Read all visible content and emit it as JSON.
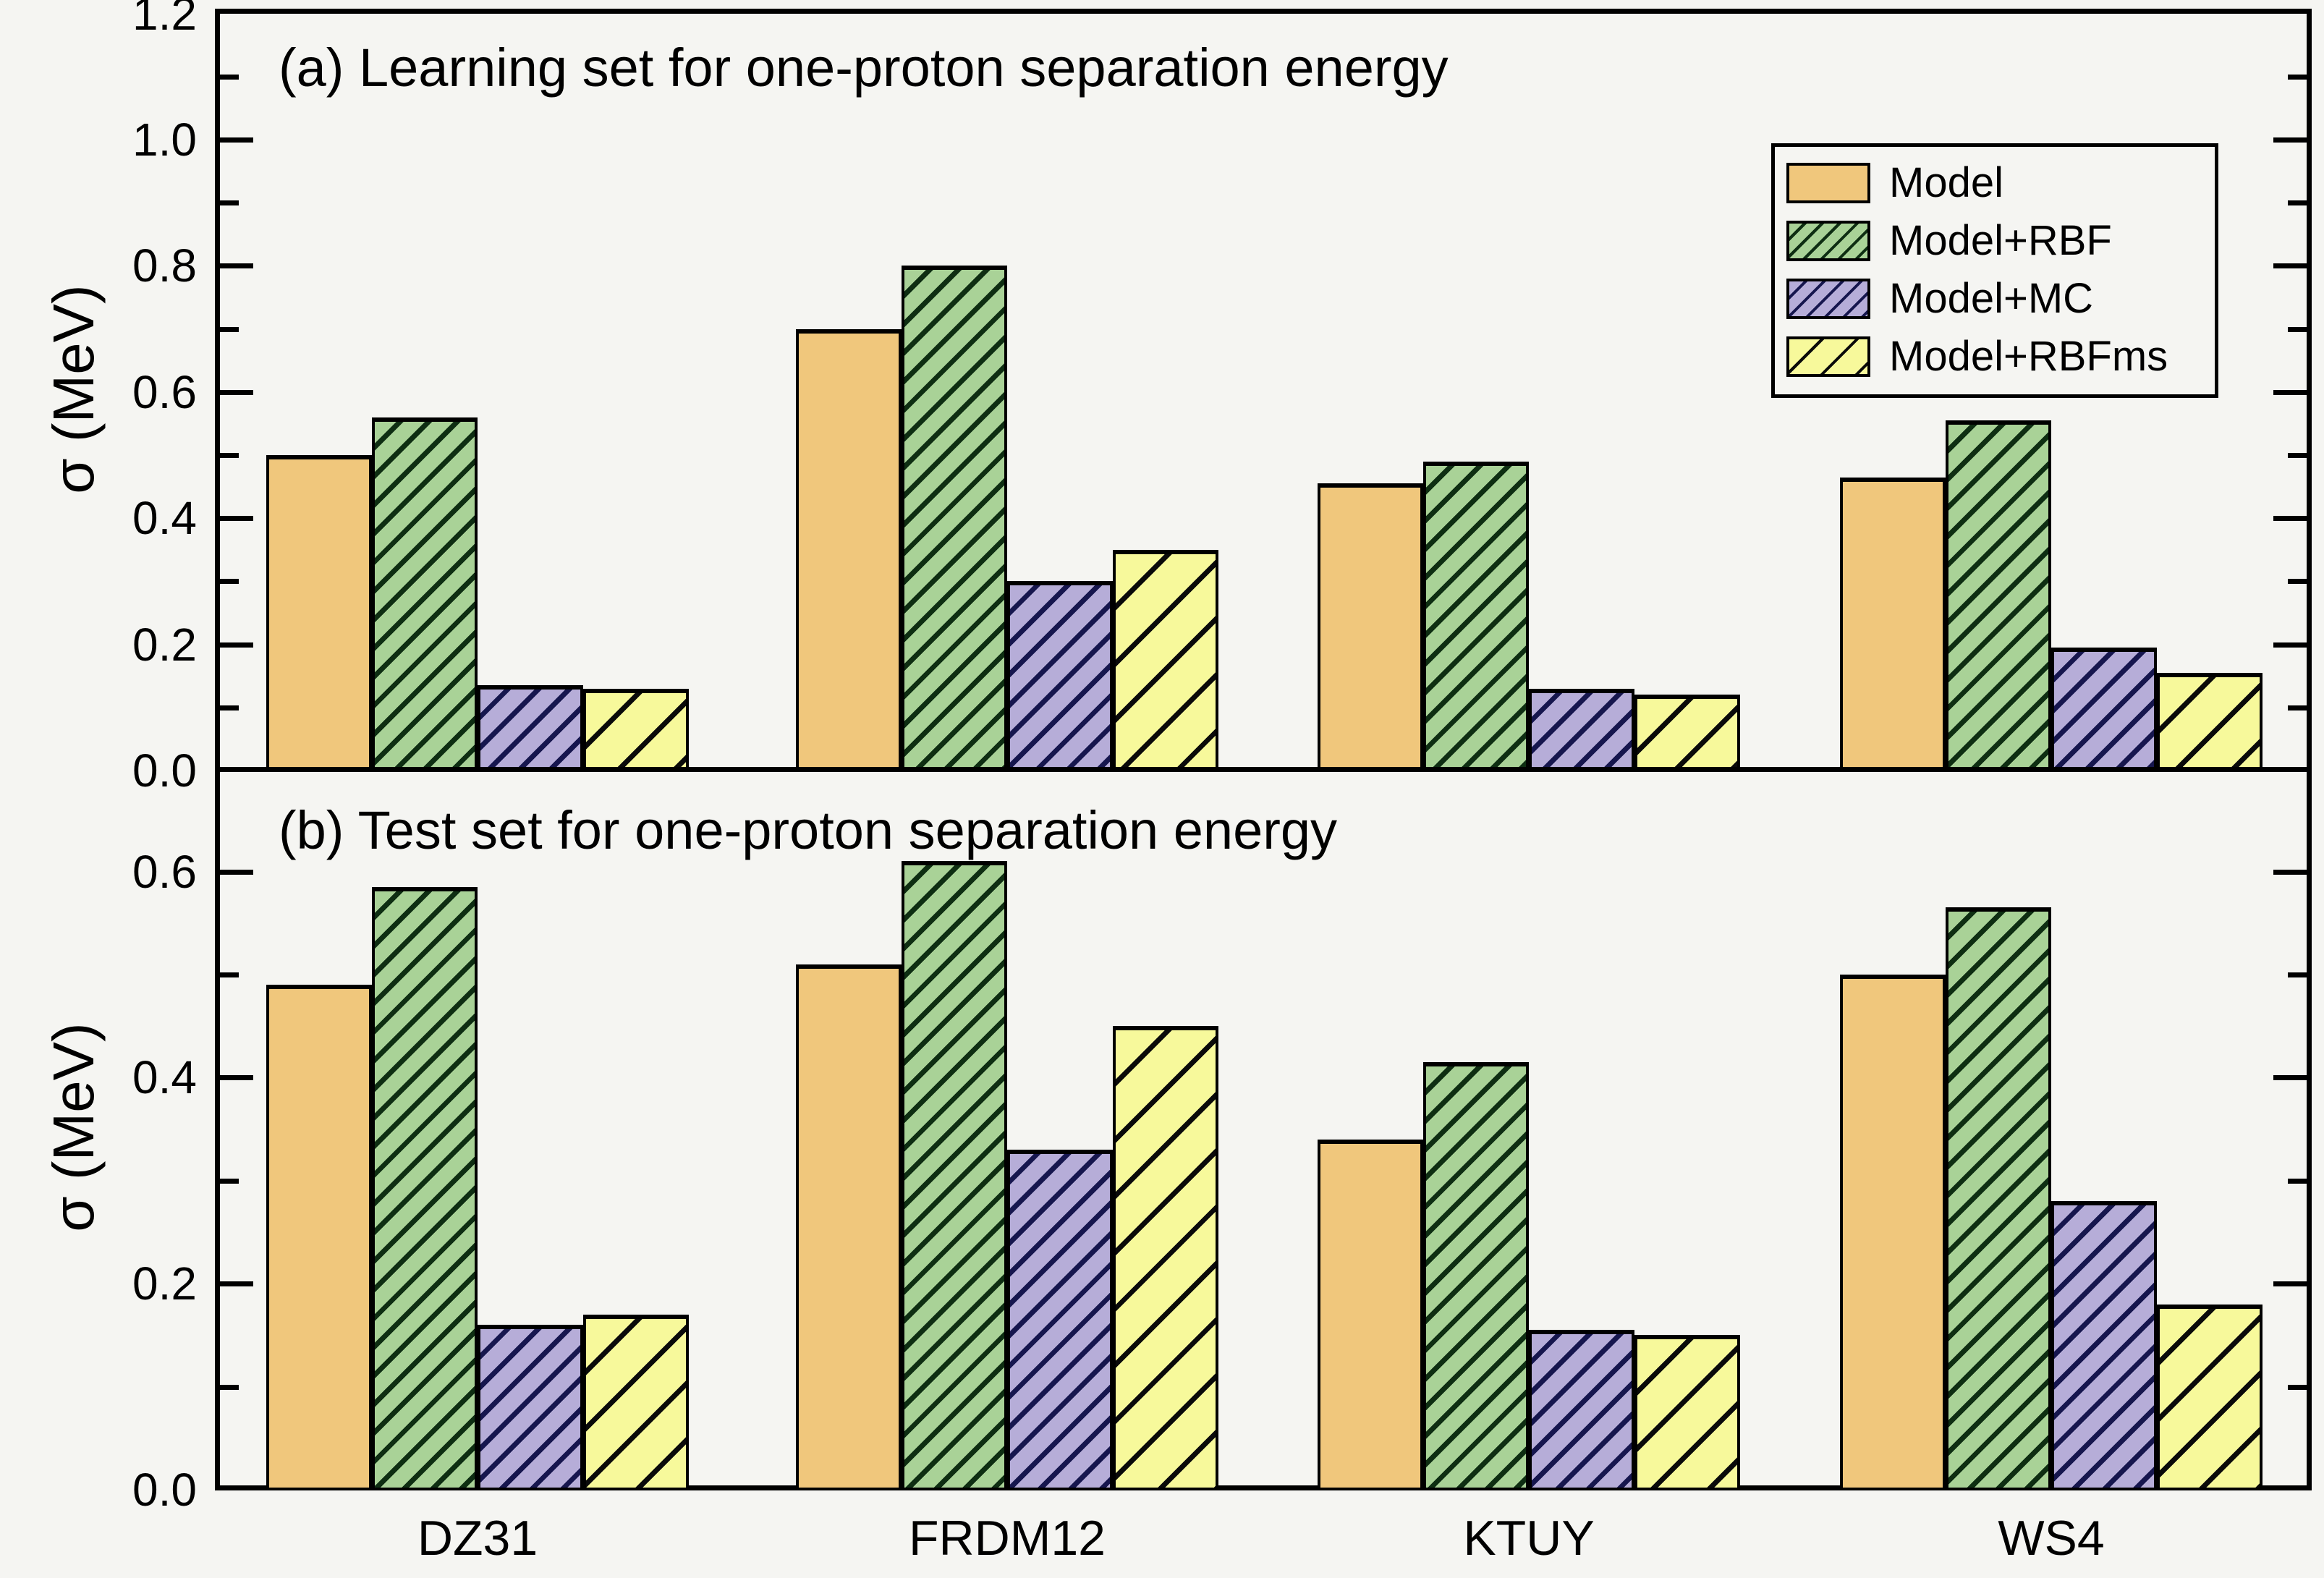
{
  "figure_background": "#f5f5f2",
  "axis_color": "#000000",
  "chart_data": [
    {
      "type": "bar",
      "panel": "a",
      "title": "(a) Learning set for one-proton separation energy",
      "ylabel": "σ (MeV)",
      "xlabel": "",
      "ylim": [
        0,
        1.2
      ],
      "ytick_labels": [
        "0.0",
        "0.2",
        "0.4",
        "0.6",
        "0.8",
        "1.0",
        "1.2"
      ],
      "ytick_major_step": 0.2,
      "ytick_minor_step": 0.1,
      "grid": false,
      "legend_position": "upper right",
      "categories": [
        "DZ31",
        "FRDM12",
        "KTUY",
        "WS4"
      ],
      "series": [
        {
          "name": "Model",
          "values": [
            0.5,
            0.7,
            0.455,
            0.465
          ]
        },
        {
          "name": "Model+RBF",
          "values": [
            0.56,
            0.8,
            0.49,
            0.555
          ]
        },
        {
          "name": "Model+MC",
          "values": [
            0.135,
            0.3,
            0.13,
            0.195
          ]
        },
        {
          "name": "Model+RBFms",
          "values": [
            0.13,
            0.35,
            0.12,
            0.155
          ]
        }
      ]
    },
    {
      "type": "bar",
      "panel": "b",
      "title": "(b) Test set for one-proton separation energy",
      "ylabel": "σ (MeV)",
      "xlabel": "",
      "ylim": [
        0,
        0.7
      ],
      "ytick_labels": [
        "0.0",
        "0.2",
        "0.4",
        "0.6"
      ],
      "ytick_major_step": 0.2,
      "ytick_minor_step": 0.1,
      "grid": false,
      "legend_position": "none",
      "categories": [
        "DZ31",
        "FRDM12",
        "KTUY",
        "WS4"
      ],
      "series": [
        {
          "name": "Model",
          "values": [
            0.49,
            0.51,
            0.34,
            0.5
          ]
        },
        {
          "name": "Model+RBF",
          "values": [
            0.585,
            0.61,
            0.415,
            0.565
          ]
        },
        {
          "name": "Model+MC",
          "values": [
            0.16,
            0.33,
            0.155,
            0.28
          ]
        },
        {
          "name": "Model+RBFms",
          "values": [
            0.17,
            0.45,
            0.15,
            0.18
          ]
        }
      ]
    }
  ],
  "legend": {
    "items": [
      "Model",
      "Model+RBF",
      "Model+MC",
      "Model+RBFms"
    ]
  },
  "series_styles": [
    {
      "name": "Model",
      "fill": "#f0c77c",
      "hatch": false,
      "hatch_color": null
    },
    {
      "name": "Model+RBF",
      "fill": "#a9d297",
      "hatch": true,
      "hatch_color": "#0e2e12"
    },
    {
      "name": "Model+MC",
      "fill": "#b6add8",
      "hatch": true,
      "hatch_color": "#16164e"
    },
    {
      "name": "Model+RBFms",
      "fill": "#f7f99b",
      "hatch": true,
      "hatch_color": "#0a0a0a"
    }
  ]
}
